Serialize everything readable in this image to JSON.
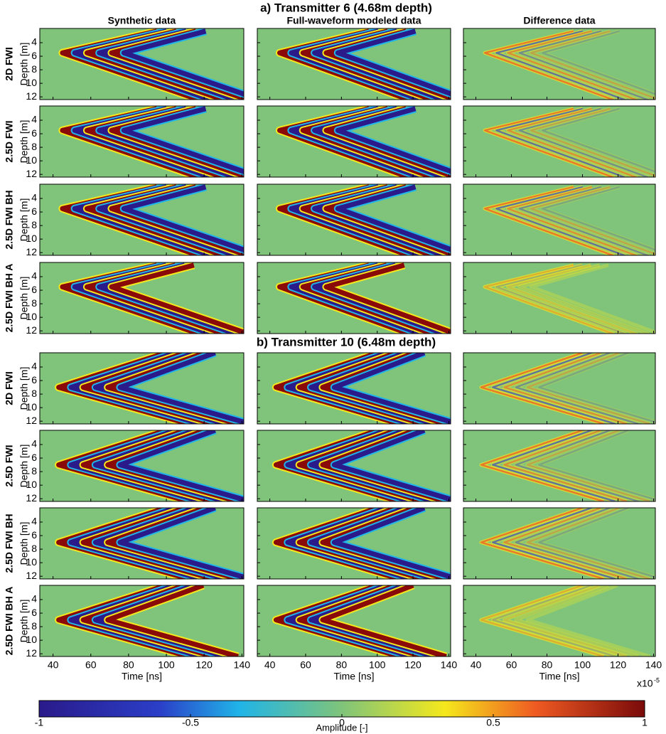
{
  "column_titles": [
    "Synthetic data",
    "Full-waveform modeled data",
    "Difference data"
  ],
  "sections": [
    {
      "title": "a) Transmitter 6 (4.68m depth)",
      "rows": [
        "2D FWI",
        "2.5D FWI",
        "2.5D FWI BH",
        "2.5D FWI BH A"
      ]
    },
    {
      "title": "b) Transmitter 10 (6.48m depth)",
      "rows": [
        "2D FWI",
        "2.5D FWI",
        "2.5D FWI BH",
        "2.5D FWI BH A"
      ]
    }
  ],
  "axes": {
    "ylabel": "Depth [m]",
    "xlabel": "Time [ns]",
    "ylim": [
      1.9,
      12.4
    ],
    "yticks": [
      4,
      6,
      8,
      10,
      12
    ],
    "xlim": [
      33,
      141
    ],
    "xticks": [
      40,
      60,
      80,
      100,
      120,
      140
    ]
  },
  "colorbar": {
    "label": "Amplitude [-]",
    "multiplier": "x10",
    "exponent": "-5",
    "lim": [
      -1,
      1
    ],
    "ticks": [
      -1,
      -0.5,
      0,
      0.5,
      1
    ]
  }
}
